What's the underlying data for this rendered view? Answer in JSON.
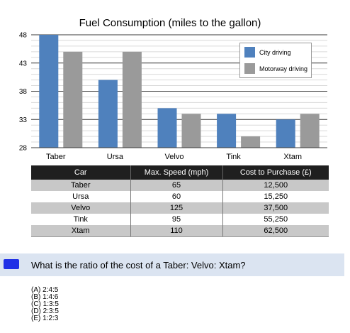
{
  "chart_data": {
    "type": "bar",
    "title": "Fuel Consumption (miles to the gallon)",
    "categories": [
      "Taber",
      "Ursa",
      "Velvo",
      "Tink",
      "Xtam"
    ],
    "series": [
      {
        "name": "City driving",
        "color": "#4f81bd",
        "values": [
          48,
          40,
          35,
          34,
          33
        ]
      },
      {
        "name": "Motorway driving",
        "color": "#9a9a9a",
        "values": [
          45,
          45,
          34,
          30,
          34
        ]
      }
    ],
    "ylim": [
      28,
      48
    ],
    "yticks": [
      28,
      33,
      38,
      43,
      48
    ],
    "grid": true,
    "legend_position": "top-right",
    "xlabel": "",
    "ylabel": ""
  },
  "table": {
    "headers": [
      "Car",
      "Max. Speed (mph)",
      "Cost to Purchase (£)"
    ],
    "rows": [
      [
        "Taber",
        "65",
        "12,500"
      ],
      [
        "Ursa",
        "60",
        "15,250"
      ],
      [
        "Velvo",
        "125",
        "37,500"
      ],
      [
        "Tink",
        "95",
        "55,250"
      ],
      [
        "Xtam",
        "110",
        "62,500"
      ]
    ],
    "header_color": "#1f1f1f",
    "shade_color": "#c8c8c8"
  },
  "question": {
    "text": "What is the ratio of the cost of a Taber: Velvo: Xtam?",
    "options": [
      "(A) 2:4:5",
      "(B) 1:4:6",
      "(C) 1:3:5",
      "(D) 2:3:5",
      "(E) 1:2:3"
    ],
    "bar_color": "#dbe4f1",
    "marker_color": "#1f2fe6"
  }
}
